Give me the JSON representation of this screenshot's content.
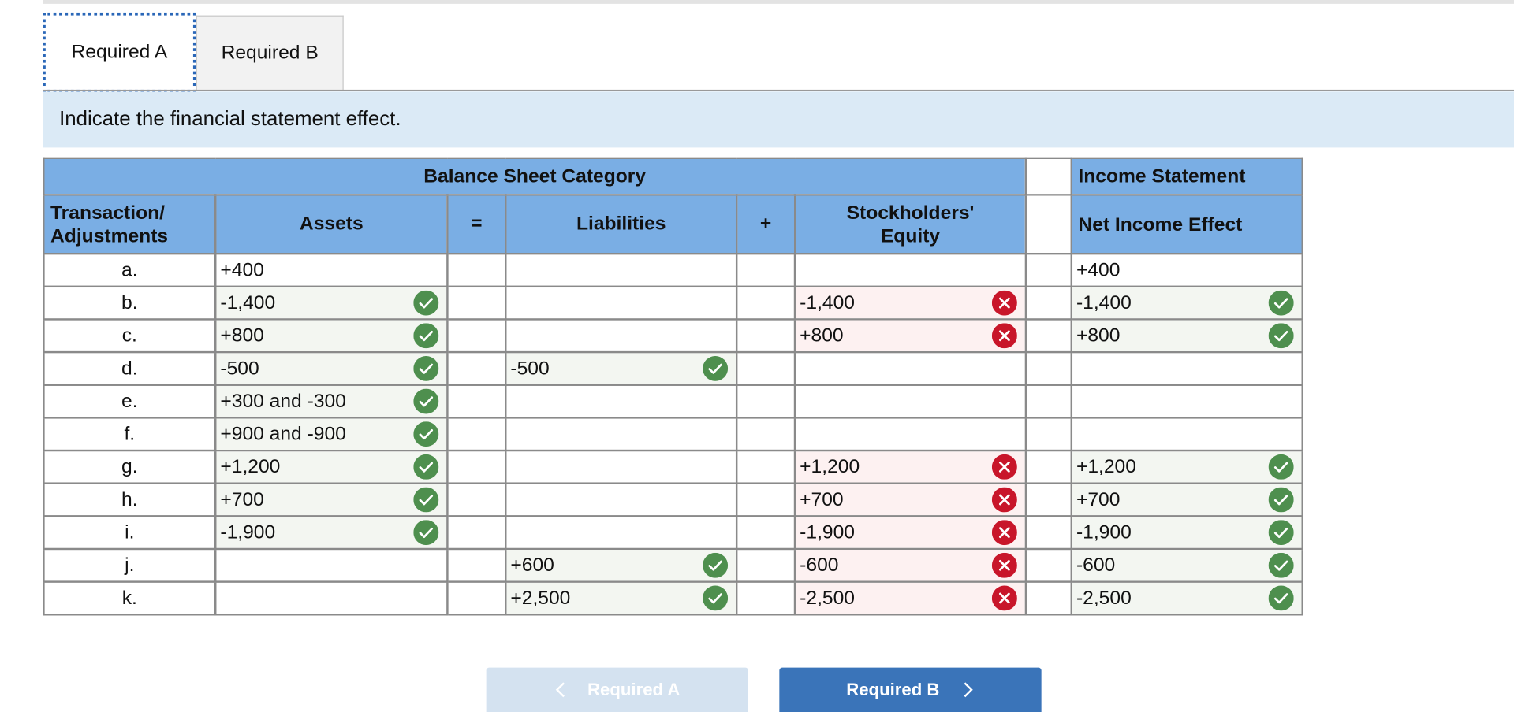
{
  "tabs": [
    {
      "label": "Required A",
      "active": true
    },
    {
      "label": "Required B",
      "active": false
    }
  ],
  "instruction": "Indicate the financial statement effect.",
  "table": {
    "header": {
      "balance_sheet": "Balance Sheet Category",
      "income_statement": "Income Statement",
      "transaction": "Transaction/ Adjustments",
      "assets": "Assets",
      "equals": "=",
      "liabilities": "Liabilities",
      "plus": "+",
      "equity": "Stockholders' Equity",
      "net_income": "Net Income Effect"
    },
    "rows": [
      {
        "label": "a.",
        "assets": "+400",
        "assets_status": "",
        "liabilities": "",
        "liabilities_status": "",
        "equity": "",
        "equity_status": "",
        "net_income": "+400",
        "net_income_status": ""
      },
      {
        "label": "b.",
        "assets": "-1,400",
        "assets_status": "correct",
        "liabilities": "",
        "liabilities_status": "",
        "equity": "-1,400",
        "equity_status": "incorrect",
        "net_income": "-1,400",
        "net_income_status": "correct"
      },
      {
        "label": "c.",
        "assets": "+800",
        "assets_status": "correct",
        "liabilities": "",
        "liabilities_status": "",
        "equity": "+800",
        "equity_status": "incorrect",
        "net_income": "+800",
        "net_income_status": "correct"
      },
      {
        "label": "d.",
        "assets": "-500",
        "assets_status": "correct",
        "liabilities": "-500",
        "liabilities_status": "correct",
        "equity": "",
        "equity_status": "",
        "net_income": "",
        "net_income_status": ""
      },
      {
        "label": "e.",
        "assets": "+300 and -300",
        "assets_status": "correct",
        "liabilities": "",
        "liabilities_status": "",
        "equity": "",
        "equity_status": "",
        "net_income": "",
        "net_income_status": ""
      },
      {
        "label": "f.",
        "assets": "+900 and -900",
        "assets_status": "correct",
        "liabilities": "",
        "liabilities_status": "",
        "equity": "",
        "equity_status": "",
        "net_income": "",
        "net_income_status": ""
      },
      {
        "label": "g.",
        "assets": "+1,200",
        "assets_status": "correct",
        "liabilities": "",
        "liabilities_status": "",
        "equity": "+1,200",
        "equity_status": "incorrect",
        "net_income": "+1,200",
        "net_income_status": "correct"
      },
      {
        "label": "h.",
        "assets": "+700",
        "assets_status": "correct",
        "liabilities": "",
        "liabilities_status": "",
        "equity": "+700",
        "equity_status": "incorrect",
        "net_income": "+700",
        "net_income_status": "correct"
      },
      {
        "label": "i.",
        "assets": "-1,900",
        "assets_status": "correct",
        "liabilities": "",
        "liabilities_status": "",
        "equity": "-1,900",
        "equity_status": "incorrect",
        "net_income": "-1,900",
        "net_income_status": "correct"
      },
      {
        "label": "j.",
        "assets": "",
        "assets_status": "",
        "liabilities": "+600",
        "liabilities_status": "correct",
        "equity": "-600",
        "equity_status": "incorrect",
        "net_income": "-600",
        "net_income_status": "correct"
      },
      {
        "label": "k.",
        "assets": "",
        "assets_status": "",
        "liabilities": "+2,500",
        "liabilities_status": "correct",
        "equity": "-2,500",
        "equity_status": "incorrect",
        "net_income": "-2,500",
        "net_income_status": "correct"
      }
    ]
  },
  "navigation": {
    "prev_label": "Required A",
    "next_label": "Required B",
    "prev_enabled": false
  },
  "colors": {
    "header_bg": "#7aaee4",
    "instruction_bg": "#dbeaf6",
    "correct_green": "#4e8f4e",
    "incorrect_red": "#c8162a",
    "next_button": "#3a74b9",
    "prev_button_disabled": "#d4e2f0"
  },
  "icons": {
    "correct": "check-circle-icon",
    "incorrect": "x-circle-icon",
    "prev": "chevron-left-icon",
    "next": "chevron-right-icon"
  }
}
